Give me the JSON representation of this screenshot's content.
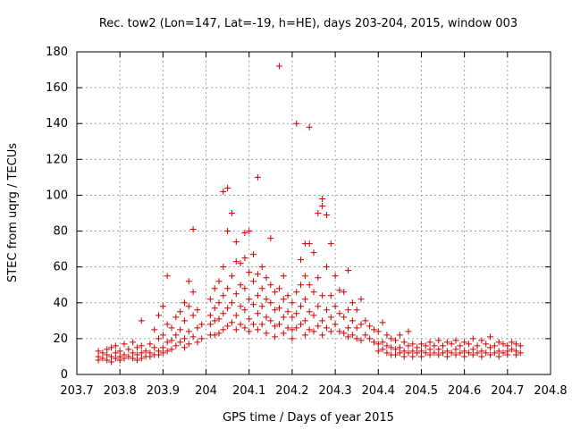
{
  "chart_data": {
    "type": "scatter",
    "title": "Rec. tow2 (Lon=147, Lat=-19, h=HE), days 203-204, 2015, window 003",
    "xlabel": "GPS time / Days of year 2015",
    "ylabel": "STEC from uqrg / TECUs",
    "xlim": [
      203.7,
      204.8
    ],
    "ylim": [
      0,
      180
    ],
    "x_ticks": [
      "203.7",
      "203.8",
      "203.9",
      "204",
      "204.1",
      "204.2",
      "204.3",
      "204.4",
      "204.5",
      "204.6",
      "204.7",
      "204.8"
    ],
    "y_ticks": [
      "0",
      "20",
      "40",
      "60",
      "80",
      "100",
      "120",
      "140",
      "160",
      "180"
    ],
    "grid": true,
    "marker": "plus",
    "color": "#cc0000",
    "series": [
      {
        "points": [
          [
            203.75,
            13
          ],
          [
            203.75,
            10
          ],
          [
            203.75,
            8
          ],
          [
            203.76,
            12
          ],
          [
            203.76,
            9
          ],
          [
            203.77,
            14
          ],
          [
            203.77,
            11
          ],
          [
            203.77,
            8
          ],
          [
            203.78,
            15
          ],
          [
            203.78,
            10
          ],
          [
            203.78,
            7
          ],
          [
            203.79,
            16
          ],
          [
            203.79,
            12
          ],
          [
            203.79,
            9
          ],
          [
            203.8,
            13
          ],
          [
            203.8,
            10
          ],
          [
            203.8,
            8
          ],
          [
            203.81,
            17
          ],
          [
            203.81,
            11
          ],
          [
            203.81,
            9
          ],
          [
            203.82,
            14
          ],
          [
            203.82,
            10
          ],
          [
            203.83,
            18
          ],
          [
            203.83,
            12
          ],
          [
            203.83,
            9
          ],
          [
            203.84,
            15
          ],
          [
            203.84,
            11
          ],
          [
            203.84,
            8
          ],
          [
            203.85,
            30
          ],
          [
            203.85,
            16
          ],
          [
            203.85,
            12
          ],
          [
            203.85,
            9
          ],
          [
            203.86,
            13
          ],
          [
            203.86,
            10
          ],
          [
            203.87,
            17
          ],
          [
            203.87,
            12
          ],
          [
            203.87,
            10
          ],
          [
            203.88,
            25
          ],
          [
            203.88,
            15
          ],
          [
            203.88,
            11
          ],
          [
            203.89,
            33
          ],
          [
            203.89,
            20
          ],
          [
            203.89,
            13
          ],
          [
            203.89,
            11
          ],
          [
            203.9,
            38
          ],
          [
            203.9,
            22
          ],
          [
            203.9,
            15
          ],
          [
            203.9,
            12
          ],
          [
            203.91,
            55
          ],
          [
            203.91,
            28
          ],
          [
            203.91,
            18
          ],
          [
            203.91,
            13
          ],
          [
            203.92,
            26
          ],
          [
            203.92,
            19
          ],
          [
            203.92,
            14
          ],
          [
            203.93,
            32
          ],
          [
            203.93,
            22
          ],
          [
            203.93,
            16
          ],
          [
            203.94,
            35
          ],
          [
            203.94,
            25
          ],
          [
            203.94,
            18
          ],
          [
            203.95,
            40
          ],
          [
            203.95,
            30
          ],
          [
            203.95,
            20
          ],
          [
            203.95,
            15
          ],
          [
            203.96,
            52
          ],
          [
            203.96,
            38
          ],
          [
            203.96,
            24
          ],
          [
            203.96,
            17
          ],
          [
            203.97,
            81
          ],
          [
            203.97,
            46
          ],
          [
            203.97,
            33
          ],
          [
            203.97,
            21
          ],
          [
            203.98,
            36
          ],
          [
            203.98,
            26
          ],
          [
            203.98,
            18
          ],
          [
            203.99,
            28
          ],
          [
            203.99,
            20
          ],
          [
            204.01,
            42
          ],
          [
            204.01,
            33
          ],
          [
            204.01,
            28
          ],
          [
            204.01,
            22
          ],
          [
            204.02,
            48
          ],
          [
            204.02,
            37
          ],
          [
            204.02,
            30
          ],
          [
            204.02,
            22
          ],
          [
            204.03,
            52
          ],
          [
            204.03,
            40
          ],
          [
            204.03,
            31
          ],
          [
            204.03,
            23
          ],
          [
            204.04,
            102
          ],
          [
            204.04,
            60
          ],
          [
            204.04,
            44
          ],
          [
            204.04,
            34
          ],
          [
            204.04,
            25
          ],
          [
            204.05,
            104
          ],
          [
            204.05,
            80
          ],
          [
            204.05,
            48
          ],
          [
            204.05,
            37
          ],
          [
            204.05,
            27
          ],
          [
            204.06,
            90
          ],
          [
            204.06,
            55
          ],
          [
            204.06,
            40
          ],
          [
            204.06,
            29
          ],
          [
            204.07,
            74
          ],
          [
            204.07,
            63
          ],
          [
            204.07,
            45
          ],
          [
            204.07,
            33
          ],
          [
            204.07,
            25
          ],
          [
            204.08,
            62
          ],
          [
            204.08,
            50
          ],
          [
            204.08,
            38
          ],
          [
            204.08,
            28
          ],
          [
            204.09,
            79
          ],
          [
            204.09,
            65
          ],
          [
            204.09,
            48
          ],
          [
            204.09,
            36
          ],
          [
            204.09,
            26
          ],
          [
            204.1,
            80
          ],
          [
            204.1,
            57
          ],
          [
            204.1,
            42
          ],
          [
            204.1,
            31
          ],
          [
            204.1,
            24
          ],
          [
            204.11,
            67
          ],
          [
            204.11,
            52
          ],
          [
            204.11,
            39
          ],
          [
            204.11,
            28
          ],
          [
            204.12,
            110
          ],
          [
            204.12,
            56
          ],
          [
            204.12,
            44
          ],
          [
            204.12,
            34
          ],
          [
            204.12,
            25
          ],
          [
            204.13,
            60
          ],
          [
            204.13,
            48
          ],
          [
            204.13,
            38
          ],
          [
            204.13,
            28
          ],
          [
            204.14,
            54
          ],
          [
            204.14,
            42
          ],
          [
            204.14,
            32
          ],
          [
            204.14,
            23
          ],
          [
            204.15,
            76
          ],
          [
            204.15,
            50
          ],
          [
            204.15,
            40
          ],
          [
            204.15,
            30
          ],
          [
            204.16,
            46
          ],
          [
            204.16,
            36
          ],
          [
            204.16,
            27
          ],
          [
            204.16,
            21
          ],
          [
            204.17,
            172
          ],
          [
            204.17,
            48
          ],
          [
            204.17,
            37
          ],
          [
            204.17,
            28
          ],
          [
            204.18,
            55
          ],
          [
            204.18,
            42
          ],
          [
            204.18,
            32
          ],
          [
            204.18,
            23
          ],
          [
            204.19,
            44
          ],
          [
            204.19,
            35
          ],
          [
            204.19,
            26
          ],
          [
            204.2,
            40
          ],
          [
            204.2,
            32
          ],
          [
            204.2,
            25
          ],
          [
            204.2,
            20
          ],
          [
            204.21,
            140
          ],
          [
            204.21,
            46
          ],
          [
            204.21,
            34
          ],
          [
            204.21,
            26
          ],
          [
            204.22,
            64
          ],
          [
            204.22,
            50
          ],
          [
            204.22,
            38
          ],
          [
            204.22,
            28
          ],
          [
            204.23,
            73
          ],
          [
            204.23,
            55
          ],
          [
            204.23,
            42
          ],
          [
            204.23,
            30
          ],
          [
            204.23,
            22
          ],
          [
            204.24,
            138
          ],
          [
            204.24,
            73
          ],
          [
            204.24,
            50
          ],
          [
            204.24,
            35
          ],
          [
            204.24,
            25
          ],
          [
            204.25,
            68
          ],
          [
            204.25,
            46
          ],
          [
            204.25,
            33
          ],
          [
            204.25,
            24
          ],
          [
            204.26,
            90
          ],
          [
            204.26,
            54
          ],
          [
            204.26,
            38
          ],
          [
            204.26,
            27
          ],
          [
            204.27,
            98
          ],
          [
            204.27,
            94
          ],
          [
            204.27,
            44
          ],
          [
            204.27,
            30
          ],
          [
            204.27,
            22
          ],
          [
            204.28,
            89
          ],
          [
            204.28,
            60
          ],
          [
            204.28,
            36
          ],
          [
            204.28,
            26
          ],
          [
            204.29,
            73
          ],
          [
            204.29,
            44
          ],
          [
            204.29,
            32
          ],
          [
            204.29,
            24
          ],
          [
            204.3,
            55
          ],
          [
            204.3,
            38
          ],
          [
            204.3,
            28
          ],
          [
            204.31,
            47
          ],
          [
            204.31,
            34
          ],
          [
            204.31,
            24
          ],
          [
            204.32,
            46
          ],
          [
            204.32,
            32
          ],
          [
            204.32,
            23
          ],
          [
            204.33,
            58
          ],
          [
            204.33,
            36
          ],
          [
            204.33,
            26
          ],
          [
            204.33,
            21
          ],
          [
            204.34,
            40
          ],
          [
            204.34,
            30
          ],
          [
            204.34,
            22
          ],
          [
            204.35,
            36
          ],
          [
            204.35,
            26
          ],
          [
            204.35,
            20
          ],
          [
            204.36,
            42
          ],
          [
            204.36,
            28
          ],
          [
            204.36,
            19
          ],
          [
            204.37,
            30
          ],
          [
            204.37,
            22
          ],
          [
            204.38,
            27
          ],
          [
            204.38,
            20
          ],
          [
            204.39,
            25
          ],
          [
            204.39,
            18
          ],
          [
            204.4,
            24
          ],
          [
            204.4,
            17
          ],
          [
            204.4,
            13
          ],
          [
            204.41,
            29
          ],
          [
            204.41,
            18
          ],
          [
            204.41,
            14
          ],
          [
            204.42,
            22
          ],
          [
            204.42,
            16
          ],
          [
            204.42,
            12
          ],
          [
            204.43,
            20
          ],
          [
            204.43,
            15
          ],
          [
            204.43,
            11
          ],
          [
            204.44,
            19
          ],
          [
            204.44,
            14
          ],
          [
            204.44,
            11
          ],
          [
            204.45,
            22
          ],
          [
            204.45,
            15
          ],
          [
            204.45,
            12
          ],
          [
            204.46,
            18
          ],
          [
            204.46,
            13
          ],
          [
            204.46,
            10
          ],
          [
            204.47,
            24
          ],
          [
            204.47,
            16
          ],
          [
            204.47,
            12
          ],
          [
            204.48,
            17
          ],
          [
            204.48,
            13
          ],
          [
            204.48,
            10
          ],
          [
            204.49,
            15
          ],
          [
            204.49,
            12
          ],
          [
            204.5,
            17
          ],
          [
            204.5,
            13
          ],
          [
            204.5,
            10
          ],
          [
            204.51,
            16
          ],
          [
            204.51,
            12
          ],
          [
            204.52,
            18
          ],
          [
            204.52,
            14
          ],
          [
            204.52,
            11
          ],
          [
            204.53,
            16
          ],
          [
            204.53,
            12
          ],
          [
            204.54,
            19
          ],
          [
            204.54,
            14
          ],
          [
            204.54,
            11
          ],
          [
            204.55,
            16
          ],
          [
            204.55,
            12
          ],
          [
            204.56,
            18
          ],
          [
            204.56,
            13
          ],
          [
            204.56,
            10
          ],
          [
            204.57,
            17
          ],
          [
            204.57,
            12
          ],
          [
            204.58,
            19
          ],
          [
            204.58,
            14
          ],
          [
            204.58,
            11
          ],
          [
            204.59,
            16
          ],
          [
            204.59,
            12
          ],
          [
            204.6,
            18
          ],
          [
            204.6,
            13
          ],
          [
            204.6,
            10
          ],
          [
            204.61,
            17
          ],
          [
            204.61,
            12
          ],
          [
            204.62,
            20
          ],
          [
            204.62,
            14
          ],
          [
            204.62,
            11
          ],
          [
            204.63,
            16
          ],
          [
            204.63,
            12
          ],
          [
            204.64,
            19
          ],
          [
            204.64,
            13
          ],
          [
            204.64,
            10
          ],
          [
            204.65,
            17
          ],
          [
            204.65,
            12
          ],
          [
            204.66,
            21
          ],
          [
            204.66,
            15
          ],
          [
            204.66,
            11
          ],
          [
            204.67,
            16
          ],
          [
            204.67,
            12
          ],
          [
            204.68,
            18
          ],
          [
            204.68,
            13
          ],
          [
            204.68,
            10
          ],
          [
            204.69,
            17
          ],
          [
            204.69,
            12
          ],
          [
            204.7,
            16
          ],
          [
            204.7,
            13
          ],
          [
            204.7,
            11
          ],
          [
            204.71,
            18
          ],
          [
            204.71,
            14
          ],
          [
            204.72,
            17
          ],
          [
            204.72,
            13
          ],
          [
            204.72,
            11
          ],
          [
            204.73,
            16
          ],
          [
            204.73,
            12
          ]
        ]
      }
    ]
  }
}
